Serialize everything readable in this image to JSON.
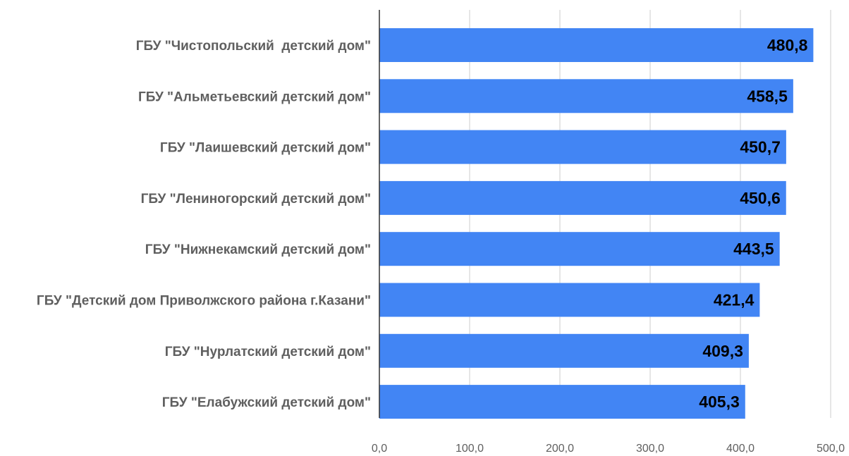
{
  "chart_data": {
    "type": "bar",
    "orientation": "horizontal",
    "title": "",
    "xlabel": "",
    "ylabel": "",
    "categories": [
      "ГБУ \"Чистопольский  детский дом\"",
      "ГБУ \"Альметьевский детский дом\"",
      "ГБУ \"Лаишевский детский дом\"",
      "ГБУ \"Лениногорский детский дом\"",
      "ГБУ \"Нижнекамский детский дом\"",
      "ГБУ \"Детский дом Приволжского района г.Казани\"",
      "ГБУ \"Нурлатский детский дом\"",
      "ГБУ \"Елабужский детский дом\""
    ],
    "values": [
      480.8,
      458.5,
      450.7,
      450.6,
      443.5,
      421.4,
      409.3,
      405.3
    ],
    "value_labels": [
      "480,8",
      "458,5",
      "450,7",
      "450,6",
      "443,5",
      "421,4",
      "409,3",
      "405,3"
    ],
    "xlim": [
      0,
      500
    ],
    "x_ticks": [
      0,
      100,
      200,
      300,
      400,
      500
    ],
    "x_tick_labels": [
      "0,0",
      "100,0",
      "200,0",
      "300,0",
      "400,0",
      "500,0"
    ],
    "grid": true,
    "legend": "none",
    "bar_color": "#4285f4",
    "grid_color": "#cccccc",
    "axis_color": "#333333"
  }
}
